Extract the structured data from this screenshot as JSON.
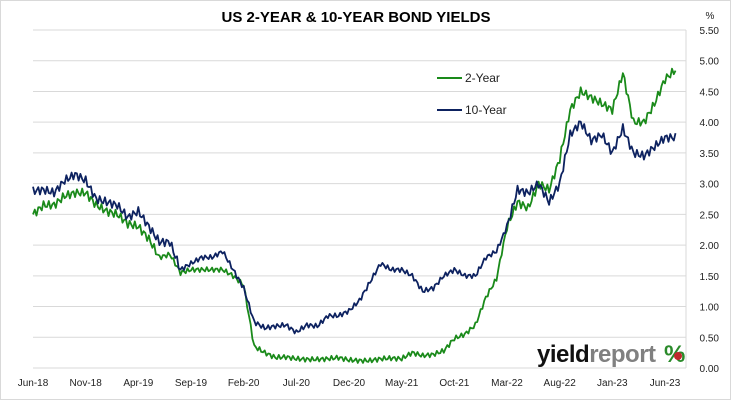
{
  "chart_data": {
    "type": "line",
    "title": "US 2-YEAR & 10-YEAR BOND YIELDS",
    "ylabel": "%",
    "xlabel": "",
    "ylim": [
      0,
      5.5
    ],
    "yticks": [
      "0.00",
      "0.50",
      "1.00",
      "1.50",
      "2.00",
      "2.50",
      "3.00",
      "3.50",
      "4.00",
      "4.50",
      "5.00",
      "5.50"
    ],
    "xticks": [
      "Jun-18",
      "Nov-18",
      "Apr-19",
      "Sep-19",
      "Feb-20",
      "Jul-20",
      "Dec-20",
      "May-21",
      "Oct-21",
      "Mar-22",
      "Aug-22",
      "Jan-23",
      "Jun-23"
    ],
    "grid": "horizontal",
    "legend": "top-center-right",
    "x": [
      "2018-06",
      "2018-07",
      "2018-08",
      "2018-09",
      "2018-10",
      "2018-11",
      "2018-12",
      "2019-01",
      "2019-02",
      "2019-03",
      "2019-04",
      "2019-05",
      "2019-06",
      "2019-07",
      "2019-08",
      "2019-09",
      "2019-10",
      "2019-11",
      "2019-12",
      "2020-01",
      "2020-02",
      "2020-03",
      "2020-04",
      "2020-05",
      "2020-06",
      "2020-07",
      "2020-08",
      "2020-09",
      "2020-10",
      "2020-11",
      "2020-12",
      "2021-01",
      "2021-02",
      "2021-03",
      "2021-04",
      "2021-05",
      "2021-06",
      "2021-07",
      "2021-08",
      "2021-09",
      "2021-10",
      "2021-11",
      "2021-12",
      "2022-01",
      "2022-02",
      "2022-03",
      "2022-04",
      "2022-05",
      "2022-06",
      "2022-07",
      "2022-08",
      "2022-09",
      "2022-10",
      "2022-11",
      "2022-12",
      "2023-01",
      "2023-02",
      "2023-03",
      "2023-04",
      "2023-05",
      "2023-06",
      "2023-07"
    ],
    "series": [
      {
        "name": "2-Year",
        "color": "#1a8a1a",
        "values": [
          2.5,
          2.65,
          2.65,
          2.8,
          2.85,
          2.85,
          2.65,
          2.55,
          2.5,
          2.35,
          2.3,
          2.1,
          1.8,
          1.85,
          1.55,
          1.6,
          1.6,
          1.6,
          1.6,
          1.5,
          1.35,
          0.35,
          0.25,
          0.17,
          0.18,
          0.15,
          0.14,
          0.14,
          0.15,
          0.17,
          0.13,
          0.12,
          0.12,
          0.15,
          0.16,
          0.15,
          0.25,
          0.2,
          0.22,
          0.28,
          0.48,
          0.55,
          0.7,
          1.15,
          1.45,
          2.3,
          2.7,
          2.6,
          3.0,
          2.9,
          3.4,
          4.2,
          4.5,
          4.4,
          4.3,
          4.2,
          4.8,
          4.0,
          4.0,
          4.3,
          4.7,
          4.85
        ]
      },
      {
        "name": "10-Year",
        "color": "#0d2260",
        "values": [
          2.88,
          2.9,
          2.85,
          3.05,
          3.15,
          3.05,
          2.75,
          2.7,
          2.65,
          2.45,
          2.55,
          2.3,
          2.05,
          2.05,
          1.6,
          1.7,
          1.8,
          1.8,
          1.9,
          1.6,
          1.3,
          0.75,
          0.65,
          0.68,
          0.7,
          0.58,
          0.7,
          0.68,
          0.85,
          0.85,
          0.93,
          1.1,
          1.4,
          1.7,
          1.6,
          1.6,
          1.5,
          1.25,
          1.3,
          1.5,
          1.6,
          1.5,
          1.5,
          1.8,
          1.9,
          2.3,
          2.9,
          2.85,
          3.0,
          2.7,
          3.0,
          3.8,
          4.0,
          3.7,
          3.8,
          3.5,
          3.9,
          3.5,
          3.45,
          3.6,
          3.75,
          3.75
        ]
      }
    ]
  },
  "logo": {
    "text_dark": "yield",
    "text_grey": "report",
    "symbol": "%"
  }
}
